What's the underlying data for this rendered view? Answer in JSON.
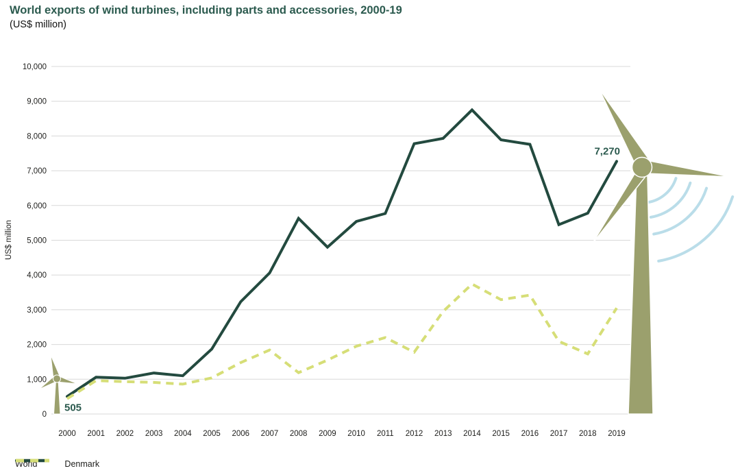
{
  "chart_data": {
    "type": "line",
    "title": "World exports of wind turbines, including parts and accessories, 2000-19",
    "subtitle": "(US$ million)",
    "ylabel": "US$ million",
    "ylim": [
      0,
      10000
    ],
    "y_tick_step": 1000,
    "y_tick_labels": [
      "0",
      "1,000",
      "2,000",
      "3,000",
      "4,000",
      "5,000",
      "6,000",
      "7,000",
      "8,000",
      "9,000",
      "10,000"
    ],
    "x_tick_labels": [
      "2000",
      "2001",
      "2002",
      "2003",
      "2004",
      "2005",
      "2006",
      "2007",
      "2008",
      "2009",
      "2010",
      "2011",
      "2012",
      "2013",
      "2014",
      "2015",
      "2016",
      "2017",
      "2018",
      "2019"
    ],
    "grid": "horizontal",
    "legend_position": "bottom-left",
    "series": [
      {
        "name": "World",
        "style": "solid",
        "color": "#234a3f",
        "values": [
          505,
          1060,
          1030,
          1180,
          1100,
          1870,
          3230,
          4060,
          5630,
          4800,
          5540,
          5770,
          7780,
          7930,
          8750,
          7890,
          7760,
          5450,
          5780,
          7270
        ]
      },
      {
        "name": "Denmark",
        "style": "dashed",
        "color": "#d6de77",
        "values": [
          440,
          960,
          930,
          910,
          860,
          1040,
          1480,
          1840,
          1190,
          1550,
          1950,
          2200,
          1780,
          2950,
          3740,
          3290,
          3420,
          2090,
          1730,
          3050
        ]
      }
    ],
    "annotations": [
      {
        "text": "505",
        "series": "World",
        "x": "2000",
        "value": 505
      },
      {
        "text": "7,270",
        "series": "World",
        "x": "2019",
        "value": 7270
      }
    ]
  },
  "colors": {
    "title": "#2b5a4e",
    "annotation": "#2b5a4e",
    "world_line": "#234a3f",
    "denmark_line": "#d6de77",
    "turbine_olive": "#9ba06d",
    "arc_blue": "#badde9",
    "gridline": "#d8d8d8",
    "axis_text": "#1d1d1b"
  }
}
